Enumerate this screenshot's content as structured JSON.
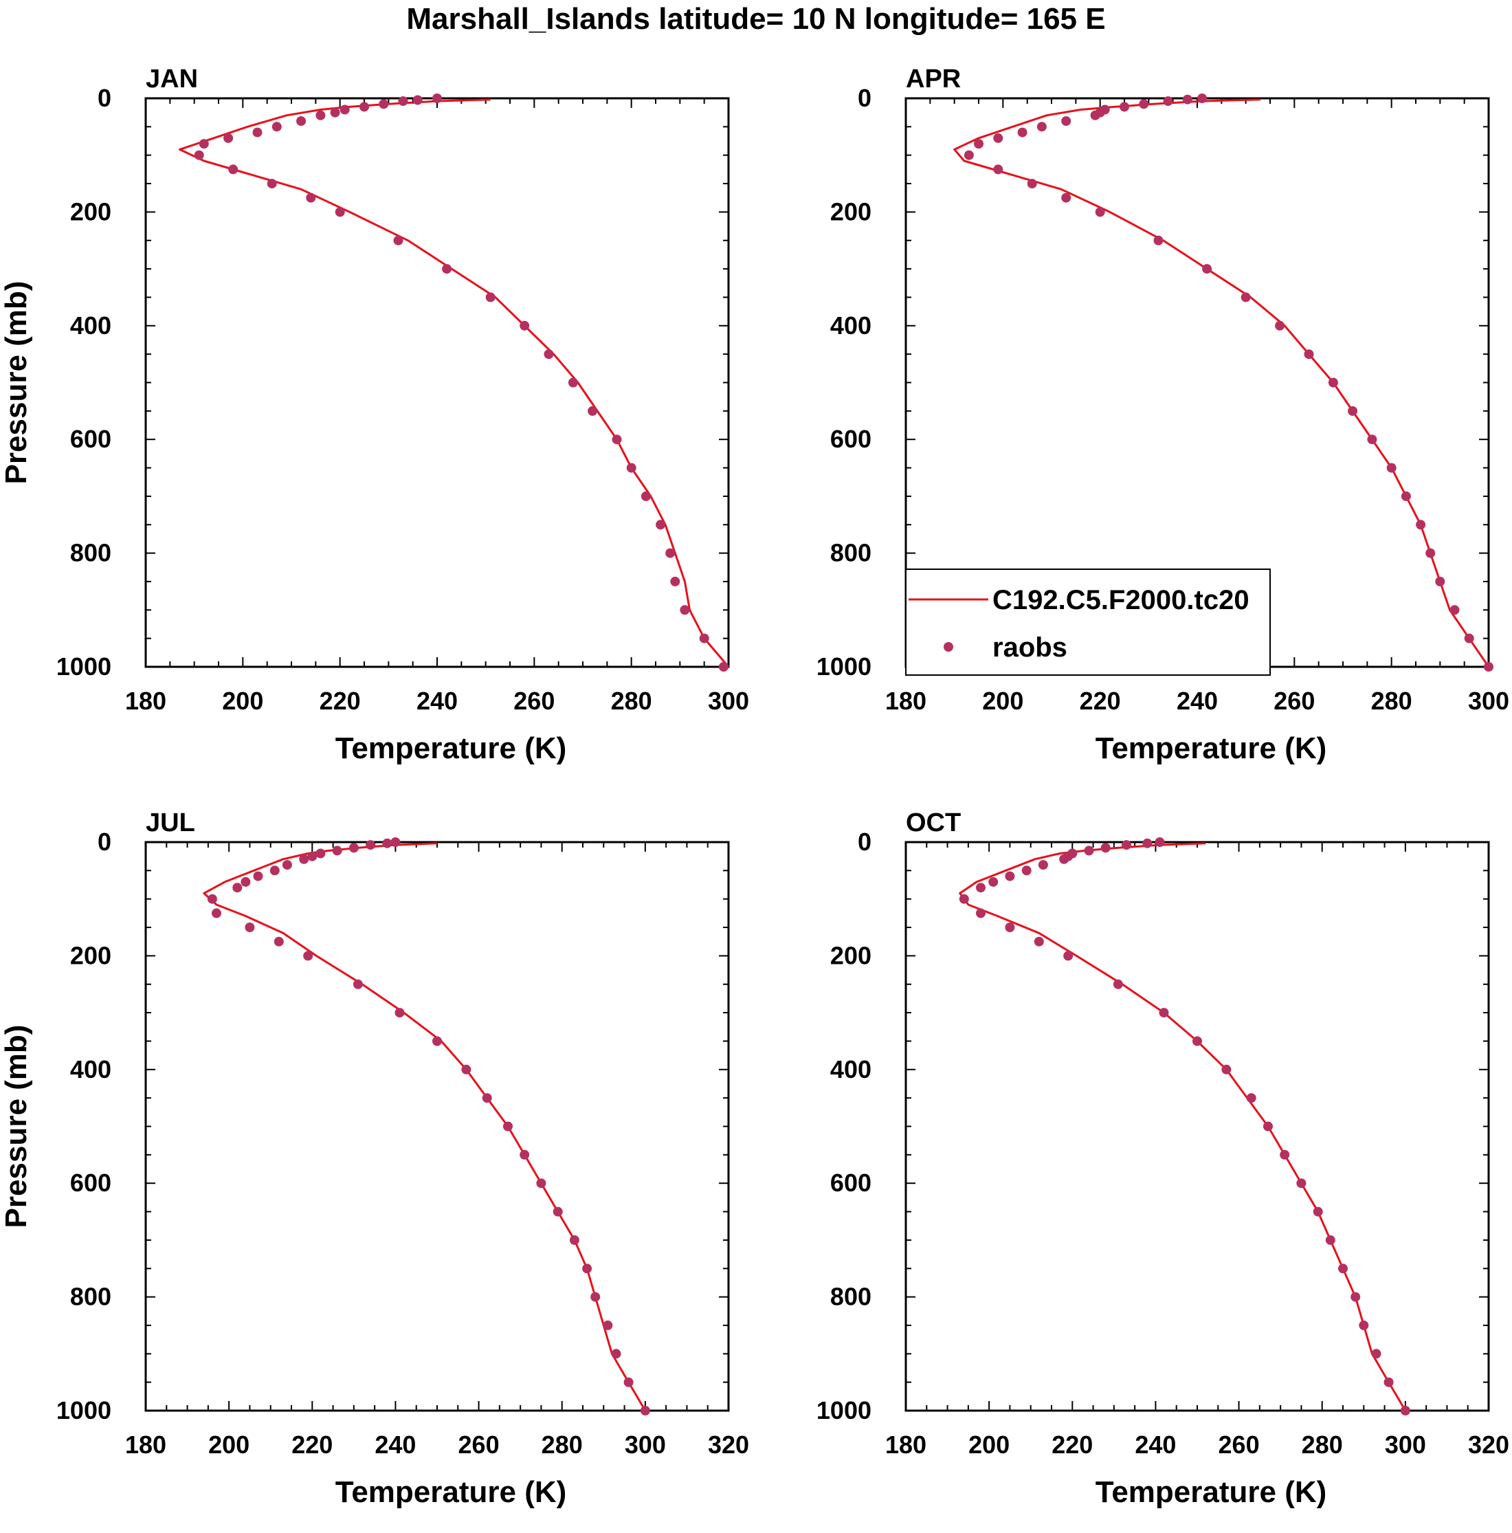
{
  "figure_title": "Marshall_Islands  latitude= 10 N longitude= 165 E",
  "legend": {
    "model_label": "C192.C5.F2000.tc20",
    "obs_label": "raobs"
  },
  "colors": {
    "model_line": "#e8101a",
    "obs_marker": "#b5305f",
    "axis": "#000000"
  },
  "chart_data": [
    {
      "type": "line",
      "panel_label": "JAN",
      "xlabel": "Temperature (K)",
      "ylabel": "Pressure (mb)",
      "xlim": [
        180,
        300
      ],
      "ylim": [
        1000,
        0
      ],
      "xticks": [
        180,
        200,
        220,
        240,
        260,
        280,
        300
      ],
      "yticks": [
        0,
        200,
        400,
        600,
        800,
        1000
      ],
      "series": [
        {
          "name": "C192.C5.F2000.tc20",
          "kind": "line",
          "t": [
            251,
            240,
            230,
            222,
            216,
            209,
            201,
            194,
            187,
            192,
            200,
            212,
            222,
            234,
            243,
            252,
            258,
            264,
            269,
            273,
            277,
            280,
            284,
            287,
            289,
            291,
            292,
            295,
            300
          ],
          "p": [
            2,
            5,
            10,
            15,
            20,
            30,
            50,
            70,
            90,
            110,
            130,
            160,
            200,
            250,
            300,
            350,
            400,
            450,
            500,
            550,
            600,
            650,
            700,
            750,
            800,
            850,
            900,
            950,
            1000
          ]
        },
        {
          "name": "raobs",
          "kind": "points",
          "t": [
            240,
            236,
            233,
            229,
            225,
            221,
            219,
            216,
            212,
            207,
            203,
            197,
            192,
            191,
            198,
            206,
            214,
            220,
            232,
            242,
            251,
            258,
            263,
            268,
            272,
            277,
            280,
            283,
            286,
            288,
            289,
            291,
            295,
            299
          ],
          "p": [
            0,
            3,
            5,
            10,
            15,
            20,
            25,
            30,
            40,
            50,
            60,
            70,
            80,
            100,
            125,
            150,
            175,
            200,
            250,
            300,
            350,
            400,
            450,
            500,
            550,
            600,
            650,
            700,
            750,
            800,
            850,
            900,
            950,
            1000
          ]
        }
      ]
    },
    {
      "type": "line",
      "panel_label": "APR",
      "xlabel": "Temperature (K)",
      "ylabel": "",
      "xlim": [
        180,
        300
      ],
      "ylim": [
        1000,
        0
      ],
      "xticks": [
        180,
        200,
        220,
        240,
        260,
        280,
        300
      ],
      "yticks": [
        0,
        200,
        400,
        600,
        800,
        1000
      ],
      "series": [
        {
          "name": "C192.C5.F2000.tc20",
          "kind": "line",
          "t": [
            253,
            241,
            231,
            223,
            216,
            209,
            202,
            195,
            190,
            192,
            200,
            212,
            222,
            233,
            242,
            251,
            258,
            263,
            268,
            272,
            276,
            280,
            283,
            286,
            288,
            290,
            292,
            296,
            300
          ],
          "p": [
            2,
            5,
            10,
            15,
            20,
            30,
            50,
            70,
            90,
            110,
            130,
            160,
            200,
            250,
            300,
            350,
            400,
            450,
            500,
            550,
            600,
            650,
            700,
            750,
            800,
            850,
            900,
            950,
            1000
          ]
        },
        {
          "name": "raobs",
          "kind": "points",
          "t": [
            241,
            238,
            234,
            229,
            225,
            221,
            220,
            219,
            213,
            208,
            204,
            199,
            195,
            193,
            199,
            206,
            213,
            220,
            232,
            242,
            250,
            257,
            263,
            268,
            272,
            276,
            280,
            283,
            286,
            288,
            290,
            293,
            296,
            300
          ],
          "p": [
            0,
            2,
            5,
            10,
            15,
            20,
            25,
            30,
            40,
            50,
            60,
            70,
            80,
            100,
            125,
            150,
            175,
            200,
            250,
            300,
            350,
            400,
            450,
            500,
            550,
            600,
            650,
            700,
            750,
            800,
            850,
            900,
            950,
            1000
          ]
        }
      ]
    },
    {
      "type": "line",
      "panel_label": "JUL",
      "xlabel": "Temperature (K)",
      "ylabel": "Pressure (mb)",
      "xlim": [
        180,
        320
      ],
      "ylim": [
        1000,
        0
      ],
      "xticks": [
        180,
        200,
        220,
        240,
        260,
        280,
        300,
        320
      ],
      "yticks": [
        0,
        200,
        400,
        600,
        800,
        1000
      ],
      "series": [
        {
          "name": "C192.C5.F2000.tc20",
          "kind": "line",
          "t": [
            250,
            240,
            231,
            224,
            219,
            213,
            206,
            199,
            194,
            197,
            204,
            213,
            221,
            232,
            242,
            251,
            257,
            262,
            267,
            271,
            275,
            279,
            283,
            286,
            288,
            290,
            292,
            296,
            300
          ],
          "p": [
            2,
            5,
            10,
            15,
            20,
            30,
            50,
            70,
            90,
            110,
            130,
            160,
            200,
            250,
            300,
            350,
            400,
            450,
            500,
            550,
            600,
            650,
            700,
            750,
            800,
            850,
            900,
            950,
            1000
          ]
        },
        {
          "name": "raobs",
          "kind": "points",
          "t": [
            240,
            238,
            234,
            230,
            226,
            222,
            220,
            218,
            214,
            211,
            207,
            204,
            202,
            196,
            197,
            205,
            212,
            219,
            231,
            241,
            250,
            257,
            262,
            267,
            271,
            275,
            279,
            283,
            286,
            288,
            291,
            293,
            296,
            300
          ],
          "p": [
            0,
            2,
            5,
            10,
            15,
            20,
            25,
            30,
            40,
            50,
            60,
            70,
            80,
            100,
            125,
            150,
            175,
            200,
            250,
            300,
            350,
            400,
            450,
            500,
            550,
            600,
            650,
            700,
            750,
            800,
            850,
            900,
            950,
            1000
          ]
        }
      ]
    },
    {
      "type": "line",
      "panel_label": "OCT",
      "xlabel": "Temperature (K)",
      "ylabel": "",
      "xlim": [
        180,
        320
      ],
      "ylim": [
        1000,
        0
      ],
      "xticks": [
        180,
        200,
        220,
        240,
        260,
        280,
        300,
        320
      ],
      "yticks": [
        0,
        200,
        400,
        600,
        800,
        1000
      ],
      "series": [
        {
          "name": "C192.C5.F2000.tc20",
          "kind": "line",
          "t": [
            252,
            241,
            231,
            223,
            217,
            211,
            204,
            197,
            193,
            195,
            202,
            212,
            221,
            232,
            242,
            250,
            257,
            262,
            267,
            271,
            275,
            279,
            282,
            285,
            288,
            290,
            292,
            296,
            300
          ],
          "p": [
            2,
            5,
            10,
            15,
            20,
            30,
            50,
            70,
            90,
            110,
            130,
            160,
            200,
            250,
            300,
            350,
            400,
            450,
            500,
            550,
            600,
            650,
            700,
            750,
            800,
            850,
            900,
            950,
            1000
          ]
        },
        {
          "name": "raobs",
          "kind": "points",
          "t": [
            241,
            238,
            233,
            228,
            224,
            220,
            219,
            218,
            213,
            209,
            205,
            201,
            198,
            194,
            198,
            205,
            212,
            219,
            231,
            242,
            250,
            257,
            263,
            267,
            271,
            275,
            279,
            282,
            285,
            288,
            290,
            293,
            296,
            300
          ],
          "p": [
            0,
            2,
            5,
            10,
            15,
            20,
            25,
            30,
            40,
            50,
            60,
            70,
            80,
            100,
            125,
            150,
            175,
            200,
            250,
            300,
            350,
            400,
            450,
            500,
            550,
            600,
            650,
            700,
            750,
            800,
            850,
            900,
            950,
            1000
          ]
        }
      ]
    }
  ]
}
